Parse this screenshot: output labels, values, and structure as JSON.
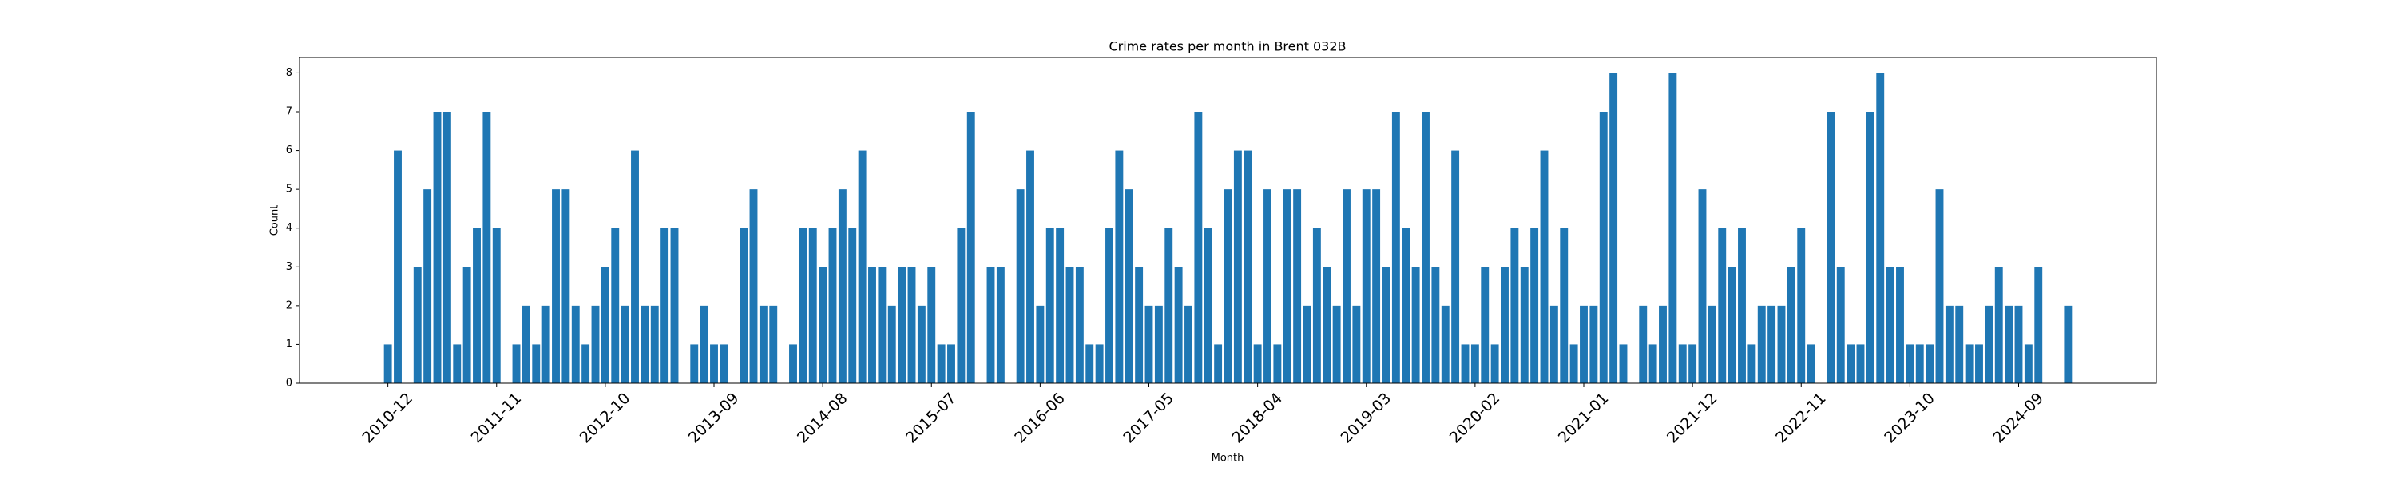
{
  "chart_data": {
    "type": "bar",
    "title": "Crime rates per month in Brent 032B",
    "xlabel": "Month",
    "ylabel": "Count",
    "color": "#1f77b4",
    "categories": [
      "2010-12",
      null,
      null,
      null,
      null,
      null,
      null,
      null,
      null,
      null,
      null,
      "2011-11",
      null,
      null,
      null,
      null,
      null,
      null,
      null,
      null,
      null,
      null,
      "2012-10",
      null,
      null,
      null,
      null,
      null,
      null,
      null,
      null,
      null,
      null,
      "2013-09",
      null,
      null,
      null,
      null,
      null,
      null,
      null,
      null,
      null,
      null,
      "2014-08",
      null,
      null,
      null,
      null,
      null,
      null,
      null,
      null,
      null,
      null,
      "2015-07",
      null,
      null,
      null,
      null,
      null,
      null,
      null,
      null,
      null,
      null,
      "2016-06",
      null,
      null,
      null,
      null,
      null,
      null,
      null,
      null,
      null,
      null,
      "2017-05",
      null,
      null,
      null,
      null,
      null,
      null,
      null,
      null,
      null,
      null,
      "2018-04",
      null,
      null,
      null,
      null,
      null,
      null,
      null,
      null,
      null,
      null,
      "2019-03",
      null,
      null,
      null,
      null,
      null,
      null,
      null,
      null,
      null,
      null,
      "2020-02",
      null,
      null,
      null,
      null,
      null,
      null,
      null,
      null,
      null,
      null,
      "2021-01",
      null,
      null,
      null,
      null,
      null,
      null,
      null,
      null,
      null,
      null,
      "2021-12",
      null,
      null,
      null,
      null,
      null,
      null,
      null,
      null,
      null,
      null,
      "2022-11",
      null,
      null,
      null,
      null,
      null,
      null,
      null,
      null,
      null,
      null,
      "2023-10",
      null,
      null,
      null,
      null,
      null,
      null,
      null,
      null,
      null,
      null,
      "2024-09",
      null,
      null,
      null,
      null,
      null
    ],
    "values": [
      1,
      6,
      0,
      3,
      5,
      7,
      7,
      1,
      3,
      4,
      7,
      4,
      0,
      1,
      2,
      1,
      2,
      5,
      5,
      2,
      1,
      2,
      3,
      4,
      2,
      6,
      2,
      2,
      4,
      4,
      0,
      1,
      2,
      1,
      1,
      0,
      4,
      5,
      2,
      2,
      0,
      1,
      4,
      4,
      3,
      4,
      5,
      4,
      6,
      3,
      3,
      2,
      3,
      3,
      2,
      3,
      1,
      1,
      4,
      7,
      0,
      3,
      3,
      0,
      5,
      6,
      2,
      4,
      4,
      3,
      3,
      1,
      1,
      4,
      6,
      5,
      3,
      2,
      2,
      4,
      3,
      2,
      7,
      4,
      1,
      5,
      6,
      6,
      1,
      5,
      1,
      5,
      5,
      2,
      4,
      3,
      2,
      5,
      2,
      5,
      5,
      3,
      7,
      4,
      3,
      7,
      3,
      2,
      6,
      1,
      1,
      3,
      1,
      3,
      4,
      3,
      4,
      6,
      2,
      4,
      1,
      2,
      2,
      7,
      8,
      1,
      0,
      2,
      1,
      2,
      8,
      1,
      1,
      5,
      2,
      4,
      3,
      4,
      1,
      2,
      2,
      2,
      3,
      4,
      1,
      0,
      7,
      3,
      1,
      1,
      7,
      8,
      3,
      3,
      1,
      1,
      1,
      5,
      2,
      2,
      1,
      1,
      2,
      3,
      2,
      2,
      1,
      3,
      0,
      0,
      2
    ],
    "ylim": [
      0,
      8.4
    ],
    "yticks": [
      0,
      1,
      2,
      3,
      4,
      5,
      6,
      7,
      8
    ]
  }
}
